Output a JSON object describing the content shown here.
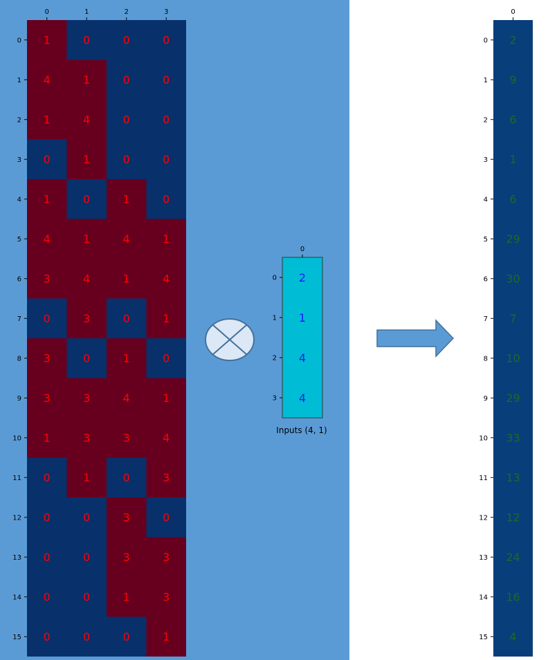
{
  "colors": {
    "panel_background": "#5b9bd5",
    "matrix_low": "#08306b",
    "matrix_high": "#67001f",
    "matrix_text": "#ff0000",
    "input_cell": "#00bcd4",
    "input_text": "#1a1aff",
    "output_cell": "#083e7a",
    "output_text": "#1a6b2a",
    "operator_fill": "#dce8f5",
    "arrow_fill": "#5b9bd5"
  },
  "operator": {
    "icon": "multiply-circle-icon"
  },
  "arrow": {
    "icon": "right-arrow-icon"
  },
  "chart_data": [
    {
      "type": "heatmap",
      "name": "weight-matrix",
      "columns": [
        "0",
        "1",
        "2",
        "3"
      ],
      "rows": [
        "0",
        "1",
        "2",
        "3",
        "4",
        "5",
        "6",
        "7",
        "8",
        "9",
        "10",
        "11",
        "12",
        "13",
        "14",
        "15"
      ],
      "values": [
        [
          1,
          0,
          0,
          0
        ],
        [
          4,
          1,
          0,
          0
        ],
        [
          1,
          4,
          0,
          0
        ],
        [
          0,
          1,
          0,
          0
        ],
        [
          1,
          0,
          1,
          0
        ],
        [
          4,
          1,
          4,
          1
        ],
        [
          3,
          4,
          1,
          4
        ],
        [
          0,
          3,
          0,
          1
        ],
        [
          3,
          0,
          1,
          0
        ],
        [
          3,
          3,
          4,
          1
        ],
        [
          1,
          3,
          3,
          4
        ],
        [
          0,
          1,
          0,
          3
        ],
        [
          0,
          0,
          3,
          0
        ],
        [
          0,
          0,
          3,
          3
        ],
        [
          0,
          0,
          1,
          3
        ],
        [
          0,
          0,
          0,
          1
        ]
      ]
    },
    {
      "type": "heatmap",
      "name": "inputs",
      "caption": "Inputs (4, 1)",
      "columns": [
        "0"
      ],
      "rows": [
        "0",
        "1",
        "2",
        "3"
      ],
      "values": [
        [
          2
        ],
        [
          1
        ],
        [
          4
        ],
        [
          4
        ]
      ]
    },
    {
      "type": "heatmap",
      "name": "outputs",
      "columns": [
        "0"
      ],
      "rows": [
        "0",
        "1",
        "2",
        "3",
        "4",
        "5",
        "6",
        "7",
        "8",
        "9",
        "10",
        "11",
        "12",
        "13",
        "14",
        "15"
      ],
      "values": [
        [
          2
        ],
        [
          9
        ],
        [
          6
        ],
        [
          1
        ],
        [
          6
        ],
        [
          29
        ],
        [
          30
        ],
        [
          7
        ],
        [
          10
        ],
        [
          29
        ],
        [
          33
        ],
        [
          13
        ],
        [
          12
        ],
        [
          24
        ],
        [
          16
        ],
        [
          4
        ]
      ]
    }
  ]
}
